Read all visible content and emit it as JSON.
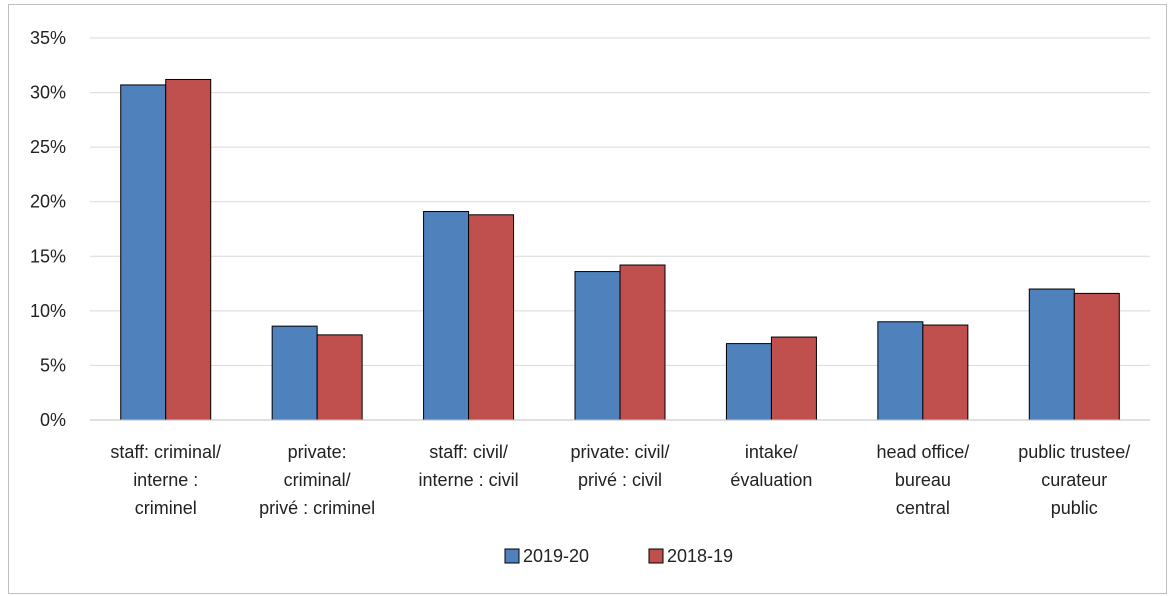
{
  "chart_data": {
    "type": "bar",
    "categories": [
      [
        "staff: criminal/",
        "interne :",
        "criminel"
      ],
      [
        "private:",
        "criminal/",
        "privé : criminel"
      ],
      [
        "staff: civil/",
        "interne : civil"
      ],
      [
        "private: civil/",
        "privé : civil"
      ],
      [
        "intake/",
        "évaluation"
      ],
      [
        "head office/",
        "bureau",
        "central"
      ],
      [
        "public trustee/",
        "curateur",
        "public"
      ]
    ],
    "series": [
      {
        "name": "2019-20",
        "color": "#4f81bd",
        "values": [
          30.7,
          8.6,
          19.1,
          13.6,
          7.0,
          9.0,
          12.0
        ]
      },
      {
        "name": "2018-19",
        "color": "#c0504d",
        "values": [
          31.2,
          7.8,
          18.8,
          14.2,
          7.6,
          8.7,
          11.6
        ]
      }
    ],
    "yticks": [
      "0%",
      "5%",
      "10%",
      "15%",
      "20%",
      "25%",
      "30%",
      "35%"
    ],
    "ylim": [
      0,
      35
    ],
    "grid": true,
    "legend_position": "bottom"
  }
}
